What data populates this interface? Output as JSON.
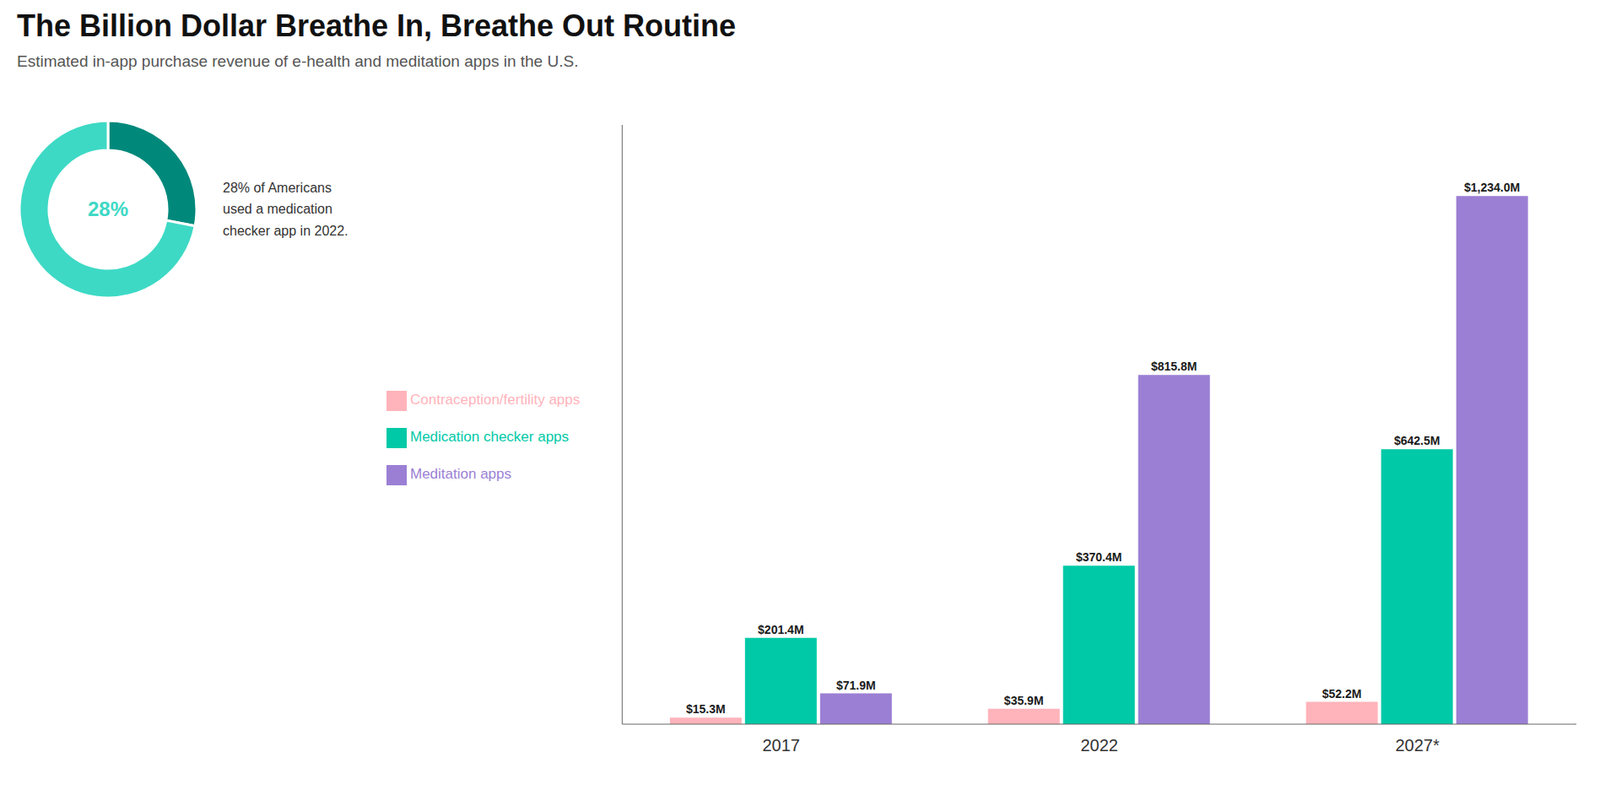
{
  "chart_data": [
    {
      "type": "bar",
      "title": "The Billion Dollar Breathe In, Breathe Out Routine",
      "subtitle": "Estimated in-app purchase revenue of e-health and meditation apps in the U.S.",
      "categories": [
        "2017",
        "2022",
        "2027*"
      ],
      "series": [
        {
          "name": "Contraception/fertility apps",
          "color": "#FFB3BA",
          "values": [
            15.3,
            35.9,
            52.2
          ],
          "value_labels": [
            "$15.3M",
            "$35.9M",
            "$52.2M"
          ]
        },
        {
          "name": "Medication checker apps",
          "color": "#00C9A7",
          "values": [
            201.4,
            370.4,
            642.5
          ],
          "value_labels": [
            "$201.4M",
            "$370.4M",
            "$642.5M"
          ]
        },
        {
          "name": "Meditation apps",
          "color": "#9B7FD4",
          "values": [
            71.9,
            815.8,
            1234.0
          ],
          "value_labels": [
            "$71.9M",
            "$815.8M",
            "$1,234.0M"
          ]
        }
      ],
      "ylim": [
        0,
        1400
      ],
      "grid": false,
      "legend": "left",
      "data_labels": true,
      "tick_labels": "x"
    },
    {
      "type": "pie",
      "values": [
        28,
        72
      ],
      "value_labels": [
        "28%",
        null
      ],
      "colors": [
        "#00897B",
        "#3DD9C5"
      ],
      "annotations": [
        "28% of Americans\nused a medication\nchecker app in 2022."
      ]
    }
  ]
}
